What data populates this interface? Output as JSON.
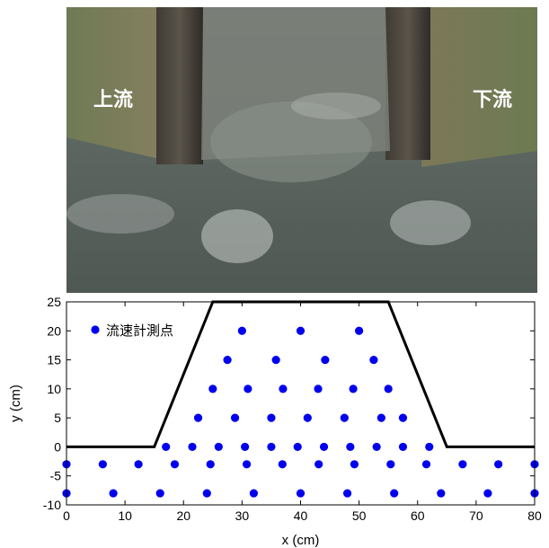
{
  "photo": {
    "upstream_label": "上流",
    "downstream_label": "下流"
  },
  "chart_data": {
    "type": "scatter",
    "xlabel": "x (cm)",
    "ylabel": "y (cm)",
    "xlim": [
      0,
      80
    ],
    "ylim": [
      -10,
      25
    ],
    "xticks": [
      0,
      10,
      20,
      30,
      40,
      50,
      60,
      70,
      80
    ],
    "yticks": [
      -10,
      -5,
      0,
      5,
      10,
      15,
      20,
      25
    ],
    "grid": false,
    "legend_position": "top-left",
    "marker_color": "#0000ee",
    "boundary_color": "#000000",
    "boundary": {
      "x": [
        0,
        15,
        25,
        55,
        65,
        80
      ],
      "y": [
        0,
        0,
        25,
        25,
        0,
        0
      ]
    },
    "series": [
      {
        "name": "流速計測点",
        "points": [
          [
            30,
            20
          ],
          [
            40,
            20
          ],
          [
            50,
            20
          ],
          [
            27.5,
            15
          ],
          [
            35.8,
            15
          ],
          [
            44.2,
            15
          ],
          [
            52.5,
            15
          ],
          [
            25,
            10
          ],
          [
            31,
            10
          ],
          [
            37,
            10
          ],
          [
            43,
            10
          ],
          [
            49,
            10
          ],
          [
            55,
            10
          ],
          [
            22.5,
            5
          ],
          [
            28.8,
            5
          ],
          [
            35,
            5
          ],
          [
            41.2,
            5
          ],
          [
            47.5,
            5
          ],
          [
            53.8,
            5
          ],
          [
            57.5,
            5
          ],
          [
            17,
            0
          ],
          [
            21.5,
            0
          ],
          [
            26,
            0
          ],
          [
            30.5,
            0
          ],
          [
            35,
            0
          ],
          [
            39.5,
            0
          ],
          [
            44,
            0
          ],
          [
            48.5,
            0
          ],
          [
            53,
            0
          ],
          [
            57.5,
            0
          ],
          [
            62,
            0
          ],
          [
            0,
            -3
          ],
          [
            6.2,
            -3
          ],
          [
            12.3,
            -3
          ],
          [
            18.5,
            -3
          ],
          [
            24.6,
            -3
          ],
          [
            30.8,
            -3
          ],
          [
            36.9,
            -3
          ],
          [
            43.1,
            -3
          ],
          [
            49.2,
            -3
          ],
          [
            55.4,
            -3
          ],
          [
            61.5,
            -3
          ],
          [
            67.7,
            -3
          ],
          [
            73.8,
            -3
          ],
          [
            80,
            -3
          ],
          [
            0,
            -8
          ],
          [
            8,
            -8
          ],
          [
            16,
            -8
          ],
          [
            24,
            -8
          ],
          [
            32,
            -8
          ],
          [
            40,
            -8
          ],
          [
            48,
            -8
          ],
          [
            56,
            -8
          ],
          [
            64,
            -8
          ],
          [
            72,
            -8
          ],
          [
            80,
            -8
          ]
        ]
      }
    ]
  }
}
